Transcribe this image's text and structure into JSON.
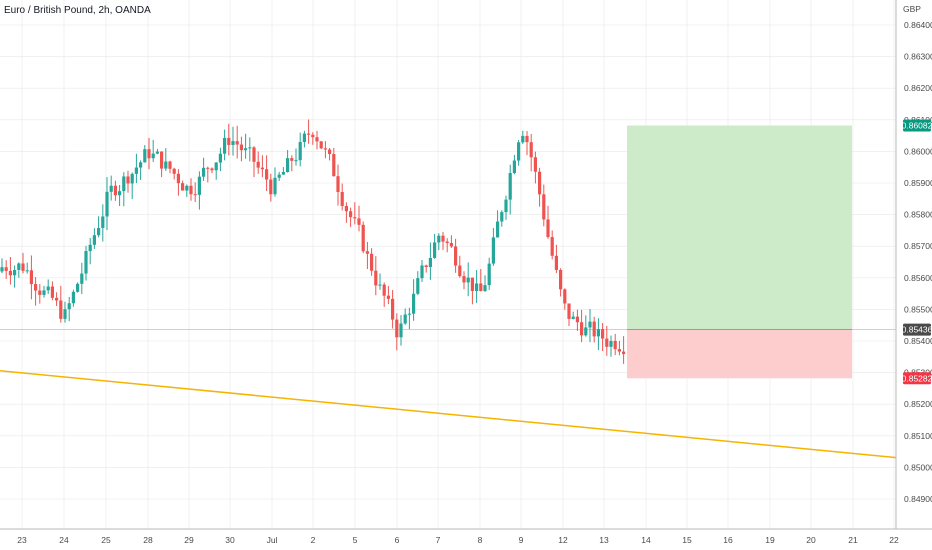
{
  "header": {
    "title": "Euro / British Pound, 2h, OANDA"
  },
  "chart_data": {
    "type": "candlestick",
    "symbol": "Euro / British Pound",
    "interval": "2h",
    "source": "OANDA",
    "currency": "GBP",
    "ylim": [
      0.8483,
      0.8645
    ],
    "y_ticks": [
      "0.86400",
      "0.86300",
      "0.86200",
      "0.86100",
      "0.86000",
      "0.85900",
      "0.85800",
      "0.85700",
      "0.85600",
      "0.85500",
      "0.85400",
      "0.85300",
      "0.85200",
      "0.85100",
      "0.85000",
      "0.84900"
    ],
    "x_ticks": [
      "23",
      "24",
      "25",
      "28",
      "29",
      "30",
      "Jul",
      "2",
      "5",
      "6",
      "7",
      "8",
      "9",
      "12",
      "13",
      "14",
      "15",
      "16",
      "19",
      "20",
      "21",
      "22"
    ],
    "price_tags": [
      {
        "label": "0.86082",
        "role": "target",
        "color": "#089981"
      },
      {
        "label": "0.85436",
        "role": "entry",
        "color": "#4a4a4a"
      },
      {
        "label": "0.85282",
        "role": "stop",
        "color": "#f23645"
      }
    ],
    "position": {
      "type": "long",
      "entry": 0.85436,
      "target": 0.86082,
      "stop": 0.85282,
      "start_label": "13",
      "end_label": "21",
      "profit_color": "#cdebc9",
      "loss_color": "#fdcccc"
    },
    "trendline": {
      "color": "#f5b400",
      "start": 0.85306,
      "end": 0.85031
    },
    "colors": {
      "up": "#26a69a",
      "down": "#ef5350",
      "grid": "#e8e8e8"
    },
    "waypoints": [
      {
        "day": "23",
        "price": 0.8564
      },
      {
        "day": "24",
        "price": 0.8547
      },
      {
        "day": "25",
        "price": 0.8586
      },
      {
        "day": "28",
        "price": 0.86
      },
      {
        "day": "29",
        "price": 0.8588
      },
      {
        "day": "30",
        "price": 0.8605
      },
      {
        "day": "Jul",
        "price": 0.8588
      },
      {
        "day": "2",
        "price": 0.8608
      },
      {
        "day": "5",
        "price": 0.8575
      },
      {
        "day": "6",
        "price": 0.8542
      },
      {
        "day": "7",
        "price": 0.8575
      },
      {
        "day": "8",
        "price": 0.8553
      },
      {
        "day": "9",
        "price": 0.8612
      },
      {
        "day": "12",
        "price": 0.8548
      },
      {
        "day": "13",
        "price": 0.854
      }
    ]
  }
}
